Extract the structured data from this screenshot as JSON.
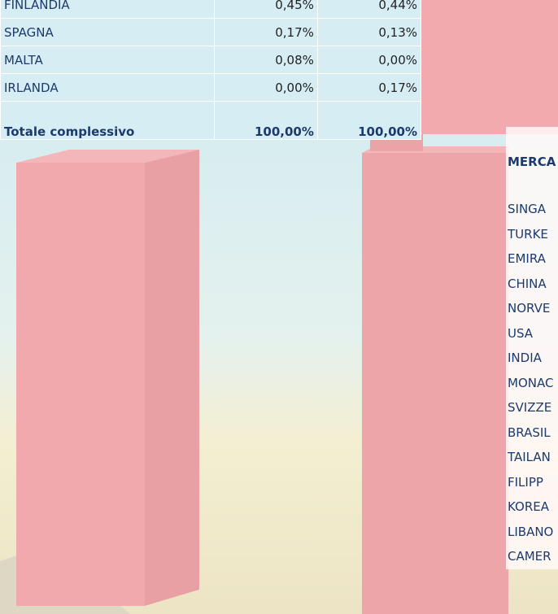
{
  "table": {
    "rows": [
      [
        "FINLANDIA",
        "0,45%",
        "0,44%"
      ],
      [
        "SPAGNA",
        "0,17%",
        "0,13%"
      ],
      [
        "MALTA",
        "0,08%",
        "0,00%"
      ],
      [
        "IRLANDA",
        "0,00%",
        "0,17%"
      ],
      [
        "Totale complessivo",
        "100,00%",
        "100,00%"
      ]
    ]
  },
  "table2": {
    "header": "MERCA",
    "rows": [
      "SINGA",
      "TURKE",
      "EMIRA",
      "CHINA",
      "NORVE",
      "USA",
      "INDIA",
      "MONAC",
      "SVIZZE",
      "BRASIL",
      "TAILAN",
      "FILIPP",
      "KOREA",
      "LIBANO",
      "CAMER"
    ]
  }
}
